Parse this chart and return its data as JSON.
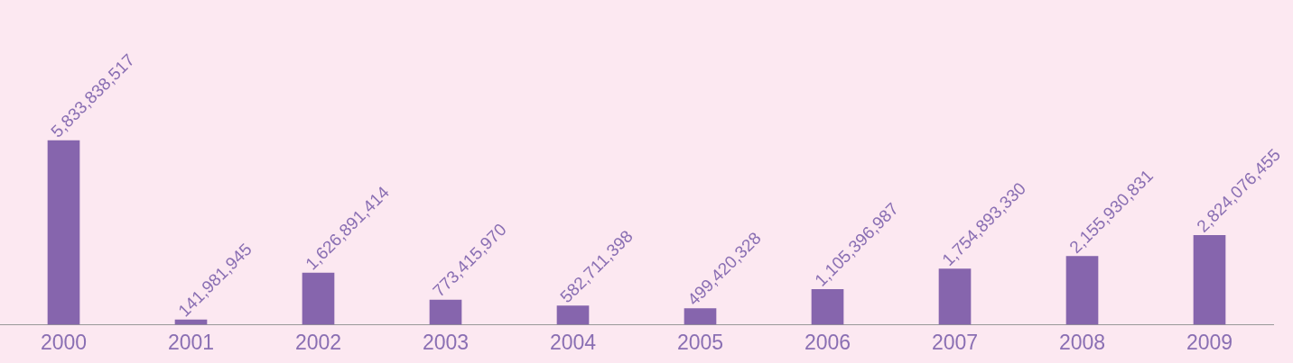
{
  "chart_data": {
    "type": "bar",
    "categories": [
      "2000",
      "2001",
      "2002",
      "2003",
      "2004",
      "2005",
      "2006",
      "2007",
      "2008",
      "2009"
    ],
    "values": [
      5833838517,
      141981945,
      1626891414,
      773415970,
      582711398,
      499420328,
      1105396987,
      1754893330,
      2155930831,
      2824076455
    ],
    "value_labels": [
      "5,833,838,517",
      "141,981,945",
      "1,626,891,414",
      "773,415,970",
      "582,711,398",
      "499,420,328",
      "1,105,396,987",
      "1,754,893,330",
      "2,155,930,831",
      "2,824,076,455"
    ],
    "color": "#8665ad",
    "grid": false,
    "legend": false,
    "tick_labels": "x"
  }
}
